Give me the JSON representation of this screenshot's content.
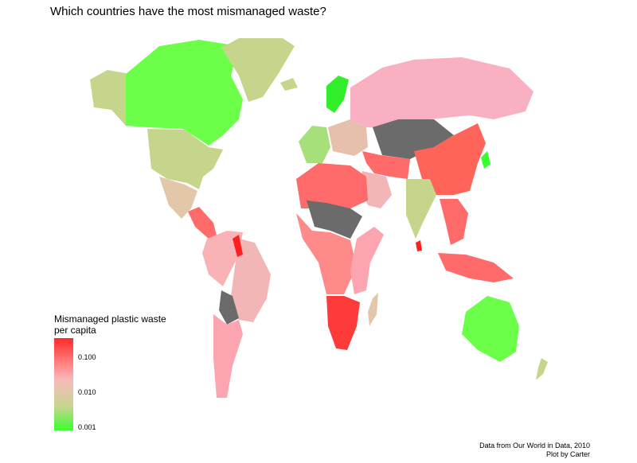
{
  "title": "Which countries have the most mismanaged waste?",
  "legend": {
    "title_line1": "Mismanaged plastic waste",
    "title_line2": "per capita",
    "ticks": [
      "0.100",
      "0.010",
      "0.001"
    ],
    "colors": {
      "high": "#ff2a2a",
      "mid": "#f7b9b9",
      "low": "#37ff2e",
      "no_data": "#6b6b6b"
    }
  },
  "caption": {
    "line1": "Data from Our World in Data, 2010",
    "line2": "Plot by Carter"
  },
  "regions": [
    {
      "name": "canada",
      "color": "#6bff4a"
    },
    {
      "name": "greenland",
      "color": "#c5d68c"
    },
    {
      "name": "alaska",
      "color": "#c5d68c"
    },
    {
      "name": "usa",
      "color": "#c5d68c"
    },
    {
      "name": "mexico",
      "color": "#e2c7a9"
    },
    {
      "name": "central-america",
      "color": "#ff6b6b"
    },
    {
      "name": "south-america-north",
      "color": "#f9b3b6"
    },
    {
      "name": "brazil",
      "color": "#f3b6b6"
    },
    {
      "name": "bolivia",
      "color": "#6b6b6b"
    },
    {
      "name": "south-america-south",
      "color": "#fca5b0"
    },
    {
      "name": "iceland",
      "color": "#c5d68c"
    },
    {
      "name": "scandinavia",
      "color": "#30ee2a"
    },
    {
      "name": "western-europe",
      "color": "#a7e07a"
    },
    {
      "name": "eastern-europe",
      "color": "#e6c0ad"
    },
    {
      "name": "russia",
      "color": "#f9b0c3"
    },
    {
      "name": "central-asia",
      "color": "#6b6b6b"
    },
    {
      "name": "china",
      "color": "#ff645a"
    },
    {
      "name": "japan",
      "color": "#37ff2e"
    },
    {
      "name": "middle-east",
      "color": "#ff6b6b"
    },
    {
      "name": "arabia",
      "color": "#f3b6b6"
    },
    {
      "name": "india",
      "color": "#c5d68c"
    },
    {
      "name": "southeast-asia",
      "color": "#ff6b6b"
    },
    {
      "name": "indonesia",
      "color": "#ff6b6b"
    },
    {
      "name": "north-africa",
      "color": "#ff6b6b"
    },
    {
      "name": "sahel",
      "color": "#6b6b6b"
    },
    {
      "name": "central-africa",
      "color": "#ff8a8a"
    },
    {
      "name": "east-africa",
      "color": "#fca5b0"
    },
    {
      "name": "southern-africa",
      "color": "#ff3a3a"
    },
    {
      "name": "madagascar",
      "color": "#e2c7a9"
    },
    {
      "name": "australia",
      "color": "#6bff4a"
    },
    {
      "name": "new-zealand",
      "color": "#c5d68c"
    },
    {
      "name": "sri-lanka",
      "color": "#ff2020"
    },
    {
      "name": "guyana",
      "color": "#ff2020"
    }
  ]
}
